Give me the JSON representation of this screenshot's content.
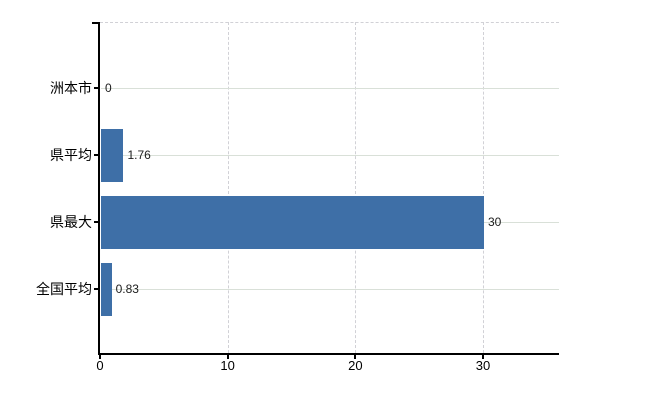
{
  "chart_data": {
    "type": "bar",
    "orientation": "horizontal",
    "title": "",
    "xlabel": "",
    "ylabel": "",
    "categories": [
      "洲本市",
      "県平均",
      "県最大",
      "全国平均"
    ],
    "values": [
      0,
      1.76,
      30,
      0.83
    ],
    "value_labels": [
      "0",
      "1.76",
      "30",
      "0.83"
    ],
    "xticks": [
      0,
      10,
      20,
      30
    ],
    "xlim": [
      0,
      36
    ],
    "bar_color": "#3e6fa7",
    "axis_color": "#000000",
    "row_gridline_color": "#d9e0d8",
    "dashed_gridline_color": "#d1d1d6",
    "legend": "none",
    "grid": "dashed vertical gridlines at x ticks; solid light horizontal line per category row; dashed top border"
  }
}
